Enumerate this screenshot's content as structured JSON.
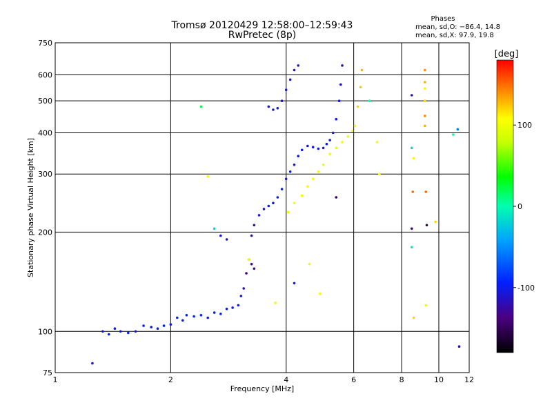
{
  "chart_data": {
    "type": "scatter",
    "title": "Tromsø 20120429 12:58:00–12:59:43",
    "subtitle": "RwPretec (8p)",
    "stats": {
      "heading": "Phases",
      "line_o": "mean, sd,O: −86.4, 14.8",
      "line_x": "mean, sd,X:  97.9, 19.8"
    },
    "xlabel": "Frequency [MHz]",
    "ylabel": "Stationary phase Virtual Height [km]",
    "x_scale": "log",
    "y_scale": "log",
    "xlim": [
      1,
      12
    ],
    "ylim": [
      75,
      750
    ],
    "x_ticks": [
      1,
      2,
      4,
      6,
      8,
      10,
      12
    ],
    "y_ticks": [
      75,
      100,
      200,
      300,
      400,
      500,
      600,
      750
    ],
    "grid": true,
    "colorbar": {
      "label": "[deg]",
      "min": -180,
      "max": 180,
      "ticks": [
        100,
        0,
        -100
      ]
    },
    "series": [
      {
        "trace": "o-mode-low",
        "points": [
          [
            1.33,
            100,
            -105
          ],
          [
            1.38,
            98,
            -100
          ],
          [
            1.43,
            102,
            -95
          ],
          [
            1.48,
            100,
            -100
          ],
          [
            1.55,
            99,
            -98
          ],
          [
            1.62,
            100,
            -102
          ],
          [
            1.7,
            104,
            -95
          ],
          [
            1.78,
            103,
            -100
          ],
          [
            1.85,
            102,
            -97
          ],
          [
            1.92,
            104,
            -95
          ],
          [
            2.0,
            105,
            -100
          ],
          [
            2.08,
            110,
            -92
          ],
          [
            2.15,
            108,
            -98
          ],
          [
            2.2,
            112,
            -95
          ],
          [
            2.3,
            111,
            -90
          ],
          [
            2.4,
            112,
            -95
          ],
          [
            2.5,
            110,
            -100
          ],
          [
            2.6,
            114,
            -95
          ],
          [
            2.7,
            113,
            -90
          ],
          [
            2.8,
            117,
            -95
          ],
          [
            2.9,
            118,
            -100
          ],
          [
            3.0,
            120,
            -100
          ],
          [
            3.05,
            128,
            -110
          ],
          [
            3.1,
            135,
            -120
          ],
          [
            3.15,
            150,
            -130
          ],
          [
            3.2,
            165,
            -140
          ],
          [
            3.25,
            160,
            -130
          ],
          [
            3.3,
            155,
            -125
          ]
        ]
      },
      {
        "trace": "o-mode-f",
        "points": [
          [
            3.25,
            195,
            -120
          ],
          [
            3.3,
            210,
            -115
          ],
          [
            3.4,
            225,
            -110
          ],
          [
            3.5,
            235,
            -105
          ],
          [
            3.6,
            240,
            -100
          ],
          [
            3.7,
            245,
            -105
          ],
          [
            3.8,
            255,
            -100
          ],
          [
            3.9,
            270,
            -100
          ],
          [
            4.0,
            290,
            -105
          ],
          [
            4.1,
            305,
            -100
          ],
          [
            4.2,
            320,
            -105
          ],
          [
            4.3,
            340,
            -100
          ],
          [
            4.4,
            355,
            -100
          ],
          [
            4.55,
            365,
            -110
          ],
          [
            4.7,
            362,
            -105
          ],
          [
            4.85,
            358,
            -100
          ],
          [
            5.0,
            360,
            -105
          ],
          [
            5.1,
            370,
            -100
          ],
          [
            5.2,
            380,
            -105
          ],
          [
            5.3,
            400,
            -110
          ],
          [
            5.4,
            440,
            -100
          ],
          [
            5.5,
            500,
            -105
          ],
          [
            5.55,
            560,
            -110
          ],
          [
            5.6,
            640,
            -115
          ]
        ]
      },
      {
        "trace": "o-mode-upper",
        "points": [
          [
            3.6,
            480,
            -110
          ],
          [
            3.7,
            470,
            -105
          ],
          [
            3.8,
            475,
            -100
          ],
          [
            3.9,
            500,
            -105
          ],
          [
            4.0,
            540,
            -100
          ],
          [
            4.1,
            580,
            -105
          ],
          [
            4.2,
            620,
            -110
          ],
          [
            4.3,
            640,
            -100
          ]
        ]
      },
      {
        "trace": "x-mode",
        "points": [
          [
            4.05,
            230,
            95
          ],
          [
            4.2,
            245,
            100
          ],
          [
            4.4,
            258,
            98
          ],
          [
            4.55,
            275,
            105
          ],
          [
            4.7,
            290,
            110
          ],
          [
            4.85,
            305,
            100
          ],
          [
            5.0,
            320,
            95
          ],
          [
            5.2,
            345,
            100
          ],
          [
            5.4,
            360,
            97
          ],
          [
            5.6,
            375,
            100
          ],
          [
            5.8,
            390,
            95
          ],
          [
            5.95,
            405,
            100
          ],
          [
            6.05,
            420,
            110
          ],
          [
            6.15,
            480,
            120
          ],
          [
            6.25,
            550,
            125
          ],
          [
            6.3,
            620,
            130
          ]
        ]
      },
      {
        "trace": "scattered",
        "points": [
          [
            1.25,
            80,
            -110
          ],
          [
            2.4,
            480,
            20
          ],
          [
            2.5,
            295,
            100
          ],
          [
            2.6,
            205,
            -20
          ],
          [
            2.7,
            195,
            -100
          ],
          [
            2.8,
            190,
            -110
          ],
          [
            3.2,
            165,
            100
          ],
          [
            3.75,
            122,
            100
          ],
          [
            4.2,
            140,
            -100
          ],
          [
            4.6,
            160,
            100
          ],
          [
            4.9,
            130,
            110
          ],
          [
            5.4,
            255,
            -150
          ],
          [
            6.6,
            500,
            0
          ],
          [
            6.9,
            375,
            100
          ],
          [
            7.0,
            300,
            110
          ],
          [
            8.5,
            520,
            -120
          ],
          [
            8.5,
            360,
            -20
          ],
          [
            8.6,
            335,
            110
          ],
          [
            8.55,
            265,
            150
          ],
          [
            8.5,
            205,
            -140
          ],
          [
            8.5,
            180,
            -10
          ],
          [
            8.6,
            110,
            120
          ],
          [
            9.2,
            620,
            140
          ],
          [
            9.2,
            570,
            130
          ],
          [
            9.2,
            545,
            110
          ],
          [
            9.2,
            500,
            120
          ],
          [
            9.2,
            450,
            140
          ],
          [
            9.2,
            420,
            130
          ],
          [
            9.25,
            265,
            150
          ],
          [
            9.3,
            210,
            -150
          ],
          [
            9.25,
            120,
            100
          ],
          [
            9.8,
            215,
            120
          ],
          [
            10.9,
            395,
            0
          ],
          [
            11.2,
            410,
            -60
          ],
          [
            11.3,
            90,
            -120
          ]
        ]
      }
    ]
  }
}
